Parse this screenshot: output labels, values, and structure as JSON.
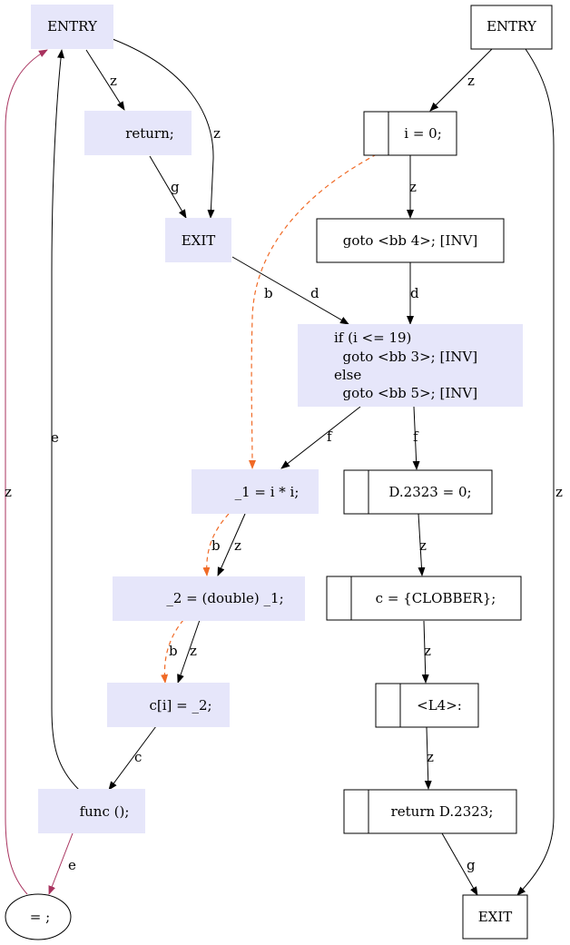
{
  "nodes": {
    "entry_left": "ENTRY",
    "return_stmt": "return;",
    "exit_left": "EXIT",
    "entry_right": "ENTRY",
    "init_i": "i = 0;",
    "goto_bb4": "goto <bb 4>; [INV]",
    "if_block": [
      "if (i <= 19)",
      "  goto <bb 3>; [INV]",
      "else",
      "  goto <bb 5>; [INV]"
    ],
    "mul": "_1 = i * i;",
    "cast": "_2 = (double) _1;",
    "store": "c[i] = _2;",
    "func_call": "func ();",
    "assign": "= ;",
    "d_zero": "D.2323 = 0;",
    "clobber": "c = {CLOBBER};",
    "label_l4": "<L4>:",
    "return_d": "return D.2323;",
    "exit_right": "EXIT"
  },
  "edge_labels": {
    "entry_to_return": "z",
    "entry_to_exit": "z",
    "return_to_exit": "g",
    "exit_to_if": "d",
    "entry_r_to_init": "z",
    "init_to_goto": "z",
    "init_to_mul": "b",
    "goto_to_if": "d",
    "if_to_mul": "f",
    "if_to_dzero": "f",
    "mul_to_cast_z": "z",
    "mul_to_cast_b": "b",
    "cast_to_store_z": "z",
    "cast_to_store_b": "b",
    "store_to_func": "c",
    "func_to_entry": "e",
    "func_to_assign": "e",
    "assign_to_entry": "z",
    "dzero_to_clobber": "z",
    "clobber_to_l4": "z",
    "l4_to_return": "z",
    "return_to_exit_r": "g",
    "entry_r_to_exit_r": "z"
  },
  "colors": {
    "node_fill": "#e6e6fa",
    "dashed_edge": "#f06a26",
    "back_edge": "#a8325e"
  }
}
